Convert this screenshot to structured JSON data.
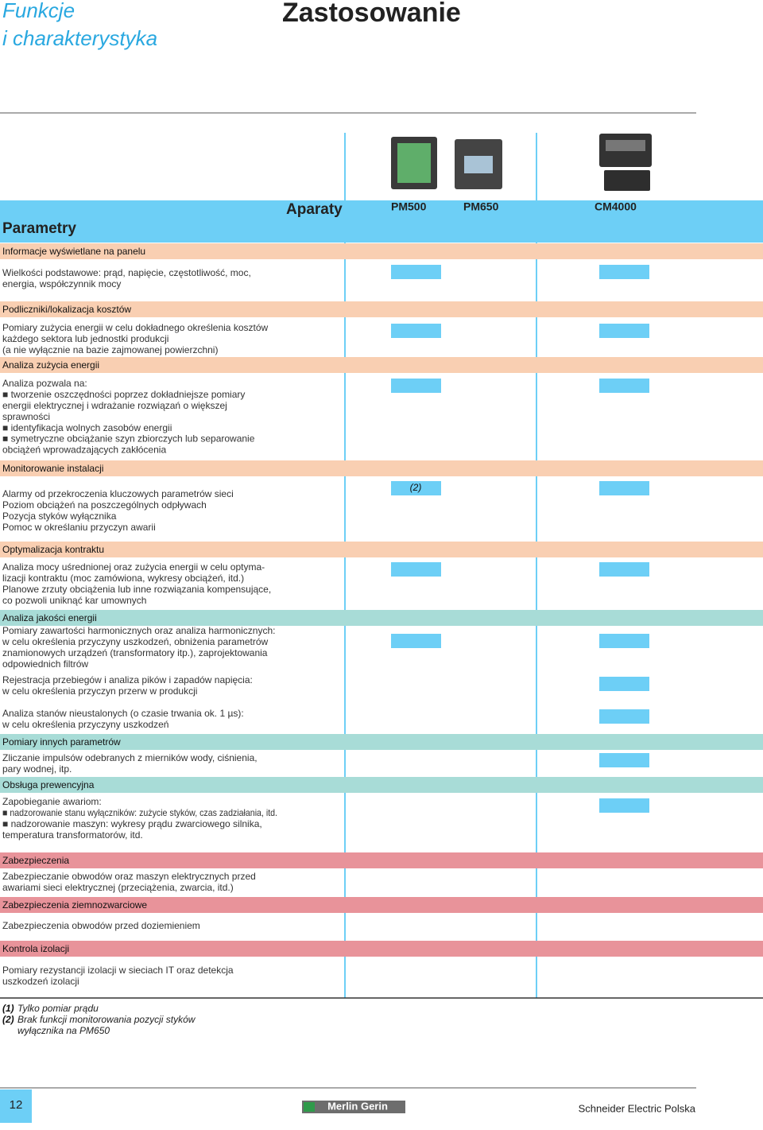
{
  "header": {
    "title_line1": "Funkcje",
    "title_line2": "i charakterystyka",
    "heading": "Zastosowanie"
  },
  "table_head": {
    "label": "Parametry",
    "devices_label": "Aparaty",
    "devices": [
      "PM500",
      "PM650",
      "CM4000"
    ]
  },
  "sections": [
    {
      "title": "Informacje wyświetlane na panelu",
      "color": "#f9cfb2",
      "items": [
        {
          "lines": [
            "Wielkości podstawowe: prąd, napięcie, częstotliwość, moc,",
            "energia, współczynnik mocy"
          ],
          "cells": [
            true,
            false,
            true
          ]
        }
      ]
    },
    {
      "title": "Podliczniki/lokalizacja kosztów",
      "color": "#f9cfb2",
      "items": [
        {
          "lines": [
            "Pomiary zużycia energii w celu dokładnego określenia kosztów",
            "każdego sektora lub jednostki produkcji",
            "(a nie wyłącznie na bazie zajmowanej powierzchni)"
          ],
          "cells": [
            true,
            false,
            true
          ]
        }
      ]
    },
    {
      "title": "Analiza zużycia energii",
      "color": "#f9cfb2",
      "items": [
        {
          "lines": [
            "Analiza pozwala na:",
            "■ tworzenie oszczędności poprzez dokładniejsze pomiary",
            "energii elektrycznej i wdrażanie rozwiązań o większej",
            "sprawności",
            "■ identyfikacja wolnych zasobów energii",
            "■ symetryczne obciążanie szyn zbiorczych lub separowanie",
            "obciążeń wprowadzających zakłócenia"
          ],
          "cells": [
            true,
            false,
            true
          ]
        }
      ]
    },
    {
      "title": "Monitorowanie instalacji",
      "color": "#f9cfb2",
      "items": [
        {
          "lines": [
            "Alarmy od przekroczenia kluczowych parametrów sieci",
            "Poziom obciążeń na poszczególnych odpływach",
            "Pozycja styków wyłącznika",
            "Pomoc w określaniu przyczyn awarii"
          ],
          "cells": [
            true,
            false,
            true
          ],
          "cell_note": {
            "column": 0,
            "text": "(2)"
          }
        }
      ]
    },
    {
      "title": "Optymalizacja kontraktu",
      "color": "#f9cfb2",
      "items": [
        {
          "lines": [
            "Analiza mocy uśrednionej oraz zużycia energii w celu optyma-",
            "lizacji kontraktu (moc zamówiona, wykresy obciążeń, itd.)",
            "Planowe zrzuty obciążenia lub inne rozwiązania kompensujące,",
            "co pozwoli uniknąć kar umownych"
          ],
          "cells": [
            true,
            false,
            true
          ]
        }
      ]
    },
    {
      "title": "Analiza jakości energii",
      "color": "#a8dcd7",
      "items": [
        {
          "lines": [
            "Pomiary zawartości harmonicznych oraz analiza harmonicznych:",
            "w celu określenia przyczyny uszkodzeń, obniżenia parametrów",
            "znamionowych urządzeń (transformatory itp.), zaprojektowania",
            "odpowiednich filtrów"
          ],
          "cells": [
            true,
            false,
            true
          ]
        },
        {
          "lines": [
            "Rejestracja przebiegów i analiza pików i zapadów napięcia:",
            "w celu określenia przyczyn przerw w produkcji"
          ],
          "cells": [
            false,
            false,
            true
          ]
        },
        {
          "lines": [
            "Analiza stanów nieustalonych (o czasie trwania ok. 1 µs):",
            "w celu określenia przyczyny uszkodzeń"
          ],
          "cells": [
            false,
            false,
            true
          ]
        }
      ]
    },
    {
      "title": "Pomiary innych parametrów",
      "color": "#a8dcd7",
      "items": [
        {
          "lines": [
            "Zliczanie impulsów odebranych z mierników wody, ciśnienia,",
            "pary wodnej, itp."
          ],
          "cells": [
            false,
            false,
            true
          ]
        }
      ]
    },
    {
      "title": "Obsługa prewencyjna",
      "color": "#a8dcd7",
      "items": [
        {
          "lines": [
            "Zapobieganie awariom:",
            "■ nadzorowanie stanu wyłączników: zużycie styków, czas zadziałania, itd.",
            "■ nadzorowanie maszyn: wykresy prądu zwarciowego silnika,",
            "temperatura transformatorów, itd."
          ],
          "cells": [
            false,
            false,
            true
          ]
        }
      ]
    },
    {
      "title": "Zabezpieczenia",
      "color": "#e8939a",
      "items": [
        {
          "lines": [
            "Zabezpieczanie obwodów oraz maszyn elektrycznych przed",
            "awariami sieci elektrycznej (przeciążenia, zwarcia, itd.)"
          ],
          "cells": [
            false,
            false,
            false
          ]
        }
      ]
    },
    {
      "title": "Zabezpieczenia ziemnozwarciowe",
      "color": "#e8939a",
      "items": [
        {
          "lines": [
            "Zabezpieczenia obwodów przed doziemieniem"
          ],
          "cells": [
            false,
            false,
            false
          ]
        }
      ]
    },
    {
      "title": "Kontrola izolacji",
      "color": "#e8939a",
      "items": [
        {
          "lines": [
            "Pomiary rezystancji izolacji w sieciach  IT oraz detekcja",
            "uszkodzeń izolacji"
          ],
          "cells": [
            false,
            false,
            false
          ]
        }
      ]
    }
  ],
  "footnotes": [
    {
      "marker": "(1)",
      "lines": [
        "Tylko pomiar prądu"
      ]
    },
    {
      "marker": "(2)",
      "lines": [
        "Brak funkcji monitorowania pozycji styków",
        "wyłącznika na PM650"
      ]
    }
  ],
  "footer": {
    "page": "12",
    "logo": "Merlin Gerin",
    "company": "Schneider Electric Polska"
  }
}
